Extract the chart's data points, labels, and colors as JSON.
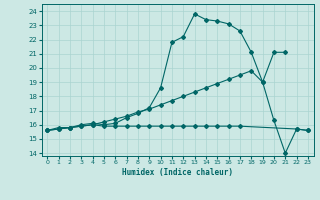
{
  "xlabel": "Humidex (Indice chaleur)",
  "xlim": [
    -0.5,
    23.5
  ],
  "ylim": [
    13.8,
    24.5
  ],
  "yticks": [
    14,
    15,
    16,
    17,
    18,
    19,
    20,
    21,
    22,
    23,
    24
  ],
  "xticks": [
    0,
    1,
    2,
    3,
    4,
    5,
    6,
    7,
    8,
    9,
    10,
    11,
    12,
    13,
    14,
    15,
    16,
    17,
    18,
    19,
    20,
    21,
    22,
    23
  ],
  "bg_color": "#cce8e4",
  "grid_color": "#aad4d0",
  "line_color": "#006666",
  "line1_x": [
    0,
    1,
    2,
    3,
    4,
    5,
    6,
    7,
    8,
    9,
    10,
    11,
    12,
    13,
    14,
    15,
    16,
    17,
    18,
    19,
    20,
    21,
    22,
    23
  ],
  "line1_y": [
    15.6,
    15.8,
    15.8,
    16.0,
    16.1,
    16.0,
    16.1,
    16.5,
    16.8,
    17.2,
    18.6,
    21.8,
    22.2,
    23.8,
    23.4,
    23.3,
    23.1,
    22.6,
    21.1,
    19.0,
    16.3,
    14.0,
    15.7,
    15.6
  ],
  "line2_x": [
    0,
    1,
    2,
    3,
    4,
    5,
    6,
    7,
    8,
    9,
    10,
    11,
    12,
    13,
    14,
    15,
    16,
    17,
    18,
    19,
    20,
    21
  ],
  "line2_y": [
    15.6,
    15.7,
    15.8,
    15.9,
    16.0,
    16.2,
    16.4,
    16.6,
    16.9,
    17.1,
    17.4,
    17.7,
    18.0,
    18.3,
    18.6,
    18.9,
    19.2,
    19.5,
    19.8,
    19.0,
    21.1,
    21.1
  ],
  "line3_x": [
    0,
    1,
    2,
    3,
    4,
    5,
    6,
    7,
    8,
    9,
    10,
    11,
    12,
    13,
    14,
    15,
    16,
    17,
    22,
    23
  ],
  "line3_y": [
    15.6,
    15.7,
    15.8,
    15.9,
    16.0,
    15.9,
    15.9,
    15.9,
    15.9,
    15.9,
    15.9,
    15.9,
    15.9,
    15.9,
    15.9,
    15.9,
    15.9,
    15.9,
    15.7,
    15.6
  ]
}
